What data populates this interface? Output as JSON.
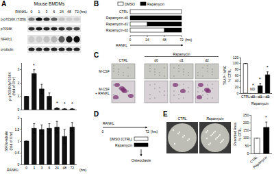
{
  "panels": {
    "A": {
      "label": "A",
      "title": "Mouse BMDMs",
      "lanes_label": "RANKL:",
      "lanes": [
        "0",
        "1",
        "3",
        "6",
        "24",
        "48",
        "72"
      ],
      "lanes_unit": "(hrs)",
      "blots": [
        "p-p70S6K (T389)",
        "p70S6K",
        "NFATc1",
        "α-tubulin"
      ]
    },
    "B": {
      "label": "B",
      "legend": [
        {
          "name": "DMSO",
          "color": "#ffffff"
        },
        {
          "name": "Rapamycin",
          "color": "#000000"
        }
      ],
      "rows": [
        {
          "label": "CTRL",
          "rapamycin_start": null
        },
        {
          "label": "Rapamycin-d0",
          "rapamycin_start": 0
        },
        {
          "label": "Rapamycin-d1",
          "rapamycin_start": 24
        },
        {
          "label": "Rapamycin-d2",
          "rapamycin_start": 48
        }
      ],
      "ticks": [
        0,
        24,
        48,
        72
      ],
      "unit": "(hrs)",
      "arrow_label": "RANKL"
    },
    "C": {
      "label": "C",
      "columns": [
        "CTRL",
        "d0",
        "d1",
        "d2"
      ],
      "group_label": "Rapamycin",
      "rows": [
        "M-CSF",
        "M-CSF\n+ RANKL"
      ]
    },
    "D": {
      "label": "D",
      "arrow_label": "RANKL",
      "ticks": [
        0,
        72
      ],
      "unit": "(hrs)",
      "bars": [
        {
          "name": "DMSO (CTRL)",
          "color": "#ffffff"
        },
        {
          "name": "Rapamycin",
          "color": "#000000"
        }
      ],
      "end_label": "Osteoclasts"
    },
    "E": {
      "label": "E",
      "columns": [
        "CTRL",
        "Rapamycin"
      ]
    }
  },
  "chart_data": [
    {
      "type": "bar",
      "ylabel": "p-p70S6K/p70S6K\n(fold of 0 hr)",
      "categories": [
        "0",
        "1",
        "3",
        "6",
        "24",
        "48",
        "72"
      ],
      "values": [
        1,
        2.7,
        1.55,
        1.0,
        0.1,
        0.05,
        0.05
      ],
      "errors": [
        0,
        0.3,
        0.35,
        0.25,
        0.05,
        0.03,
        0.03
      ],
      "color": "#111111",
      "ylim": [
        0,
        3.5
      ],
      "yticks": [
        0,
        1,
        2,
        3
      ],
      "tick_labels": "y",
      "annotations": [
        {
          "category": "1",
          "text": "*"
        },
        {
          "category": "24",
          "text": "*"
        },
        {
          "category": "48",
          "text": "*"
        },
        {
          "category": "72",
          "text": "*"
        }
      ]
    },
    {
      "type": "bar",
      "ylabel": "S6K/α-tubulin\n(fold of 0 hr)",
      "categories": [
        "0",
        "1",
        "3",
        "6",
        "24",
        "48",
        "72"
      ],
      "values": [
        1,
        1.55,
        1.5,
        1.55,
        1.6,
        1.2,
        1.6
      ],
      "errors": [
        0,
        0.2,
        0.2,
        0.2,
        0.25,
        0.3,
        0.2
      ],
      "color": "#111111",
      "ylim": [
        0,
        2
      ],
      "yticks": [
        0,
        0.5,
        1,
        1.5,
        2
      ],
      "axis_notes": [
        "RANKL:",
        "(hrs)"
      ]
    },
    {
      "type": "bar",
      "ylabel": "TRAP⁺ MNC\n% CTRL",
      "categories": [
        "CTRL",
        "d0",
        "d1",
        "d2"
      ],
      "values": [
        100,
        null,
        25,
        62
      ],
      "errors": [
        0,
        null,
        8,
        10
      ],
      "colors": [
        "#ffffff",
        "#000000",
        "#000000",
        "#000000"
      ],
      "ylim": [
        0,
        120
      ],
      "yticks": [
        0,
        20,
        40,
        60,
        80,
        100,
        120
      ],
      "group_label": {
        "text": "Rapamycin",
        "categories": [
          "d0",
          "d1",
          "d2"
        ]
      },
      "annotations": [
        {
          "category": "d0",
          "text": "ND"
        },
        {
          "category": "d0",
          "text": "*"
        },
        {
          "category": "d1",
          "text": "*"
        },
        {
          "category": "d2",
          "text": "*"
        }
      ]
    },
    {
      "type": "bar",
      "ylabel": "Resorbed Area\n% CTRL",
      "categories": [
        "CTRL",
        "Rapamycin"
      ],
      "values": [
        100,
        170
      ],
      "errors": [
        0,
        35
      ],
      "colors": [
        "#ffffff",
        "#000000"
      ],
      "ylim": [
        0,
        250
      ],
      "yticks": [
        0,
        50,
        100,
        150,
        200,
        250
      ],
      "annotations": [
        {
          "category": "Rapamycin",
          "text": "*"
        }
      ]
    }
  ]
}
